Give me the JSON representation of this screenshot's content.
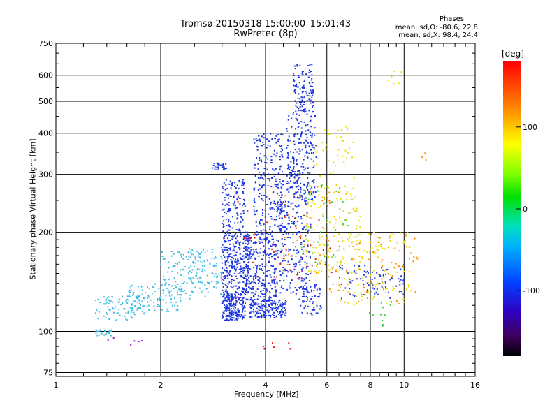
{
  "chart_data": {
    "type": "scatter",
    "title": "Tromsø 20150318 15:00:00–15:01:43",
    "subtitle": "RwPretec (8p)",
    "xlabel": "Frequency [MHz]",
    "ylabel": "Stationary phase Virtual Height [km]",
    "x_scale": "log",
    "y_scale": "log",
    "xlim": [
      1,
      16
    ],
    "ylim": [
      73,
      750
    ],
    "x_ticks": [
      1,
      2,
      4,
      6,
      8,
      10,
      16
    ],
    "x_minor_ticks": [
      1.2,
      1.4,
      1.6,
      1.8,
      2.5,
      3,
      3.5,
      4.5,
      5,
      5.5,
      6.5,
      7,
      7.5,
      8.5,
      9,
      9.5,
      11,
      12,
      13,
      14,
      15
    ],
    "y_ticks": [
      75,
      100,
      200,
      300,
      400,
      500,
      600,
      750
    ],
    "y_minor_ticks": [
      80,
      85,
      90,
      95,
      110,
      120,
      130,
      140,
      150,
      160,
      170,
      180,
      190,
      250,
      350,
      450,
      550,
      650,
      700
    ],
    "grid": true,
    "phase_info": {
      "title": "Phases",
      "line_o": "mean, sd,O: -80.6, 22.8",
      "line_x": "mean, sd,X:  98.4, 24.4"
    },
    "colorbar": {
      "label": "[deg]",
      "ticks": [
        {
          "value": 100,
          "label": "100"
        },
        {
          "value": 0,
          "label": "0"
        },
        {
          "value": -100,
          "label": "-100"
        }
      ],
      "range": [
        -180,
        180
      ]
    },
    "series": [
      {
        "color": "#1a34e0",
        "approx_phase": -100,
        "clusters": [
          {
            "x": [
              3.0,
              3.5
            ],
            "y": [
              108,
              130
            ],
            "n": 200
          },
          {
            "x": [
              3.0,
              3.6
            ],
            "y": [
              130,
              200
            ],
            "n": 280
          },
          {
            "x": [
              3.0,
              3.5
            ],
            "y": [
              200,
              290
            ],
            "n": 120
          },
          {
            "x": [
              3.6,
              4.6
            ],
            "y": [
              110,
              125
            ],
            "n": 180
          },
          {
            "x": [
              3.5,
              4.3
            ],
            "y": [
              125,
              200
            ],
            "n": 260
          },
          {
            "x": [
              3.7,
              4.5
            ],
            "y": [
              200,
              400
            ],
            "n": 220
          },
          {
            "x": [
              4.3,
              5.4
            ],
            "y": [
              130,
              250
            ],
            "n": 220
          },
          {
            "x": [
              4.6,
              5.6
            ],
            "y": [
              250,
              460
            ],
            "n": 230
          },
          {
            "x": [
              4.8,
              5.5
            ],
            "y": [
              460,
              650
            ],
            "n": 120
          },
          {
            "x": [
              5.0,
              5.8
            ],
            "y": [
              112,
              140
            ],
            "n": 60
          },
          {
            "x": [
              2.8,
              3.1
            ],
            "y": [
              310,
              325
            ],
            "n": 30
          },
          {
            "x": [
              6.5,
              10.0
            ],
            "y": [
              125,
              160
            ],
            "n": 90
          }
        ]
      },
      {
        "color": "#3dbde6",
        "approx_phase": -40,
        "clusters": [
          {
            "x": [
              1.3,
              1.8
            ],
            "y": [
              108,
              128
            ],
            "n": 90
          },
          {
            "x": [
              1.6,
              2.3
            ],
            "y": [
              115,
              140
            ],
            "n": 110
          },
          {
            "x": [
              2.0,
              3.0
            ],
            "y": [
              125,
              175
            ],
            "n": 130
          },
          {
            "x": [
              1.3,
              1.45
            ],
            "y": [
              97,
              101
            ],
            "n": 25
          },
          {
            "x": [
              2.4,
              3.0
            ],
            "y": [
              140,
              180
            ],
            "n": 50
          }
        ]
      },
      {
        "color": "#e8e000",
        "approx_phase": 100,
        "clusters": [
          {
            "x": [
              5.2,
              7.5
            ],
            "y": [
              150,
              260
            ],
            "n": 130
          },
          {
            "x": [
              6.5,
              10.5
            ],
            "y": [
              120,
              200
            ],
            "n": 120
          },
          {
            "x": [
              5.5,
              7.2
            ],
            "y": [
              250,
              420
            ],
            "n": 60
          },
          {
            "x": [
              9.0,
              10.0
            ],
            "y": [
              560,
              620
            ],
            "n": 6
          }
        ]
      },
      {
        "color": "#ff8a00",
        "approx_phase": 140,
        "clusters": [
          {
            "x": [
              6.0,
              11.0
            ],
            "y": [
              120,
              200
            ],
            "n": 60
          },
          {
            "x": [
              4.5,
              6.5
            ],
            "y": [
              150,
              300
            ],
            "n": 40
          },
          {
            "x": [
              11.2,
              11.8
            ],
            "y": [
              330,
              360
            ],
            "n": 3
          }
        ]
      },
      {
        "color": "#33cc33",
        "approx_phase": 20,
        "clusters": [
          {
            "x": [
              5.0,
              7.0
            ],
            "y": [
              160,
              280
            ],
            "n": 40
          },
          {
            "x": [
              7.5,
              9.5
            ],
            "y": [
              100,
              130
            ],
            "n": 12
          }
        ]
      },
      {
        "color": "#e81010",
        "approx_phase": 170,
        "clusters": [
          {
            "x": [
              3.2,
              6.5
            ],
            "y": [
              140,
              260
            ],
            "n": 40
          },
          {
            "x": [
              3.5,
              5.0
            ],
            "y": [
              88,
              95
            ],
            "n": 6
          }
        ]
      },
      {
        "color": "#8a1fc4",
        "approx_phase": -150,
        "clusters": [
          {
            "x": [
              3.0,
              5.5
            ],
            "y": [
              120,
              200
            ],
            "n": 25
          },
          {
            "x": [
              1.4,
              2.0
            ],
            "y": [
              90,
              96
            ],
            "n": 6
          }
        ]
      }
    ]
  }
}
